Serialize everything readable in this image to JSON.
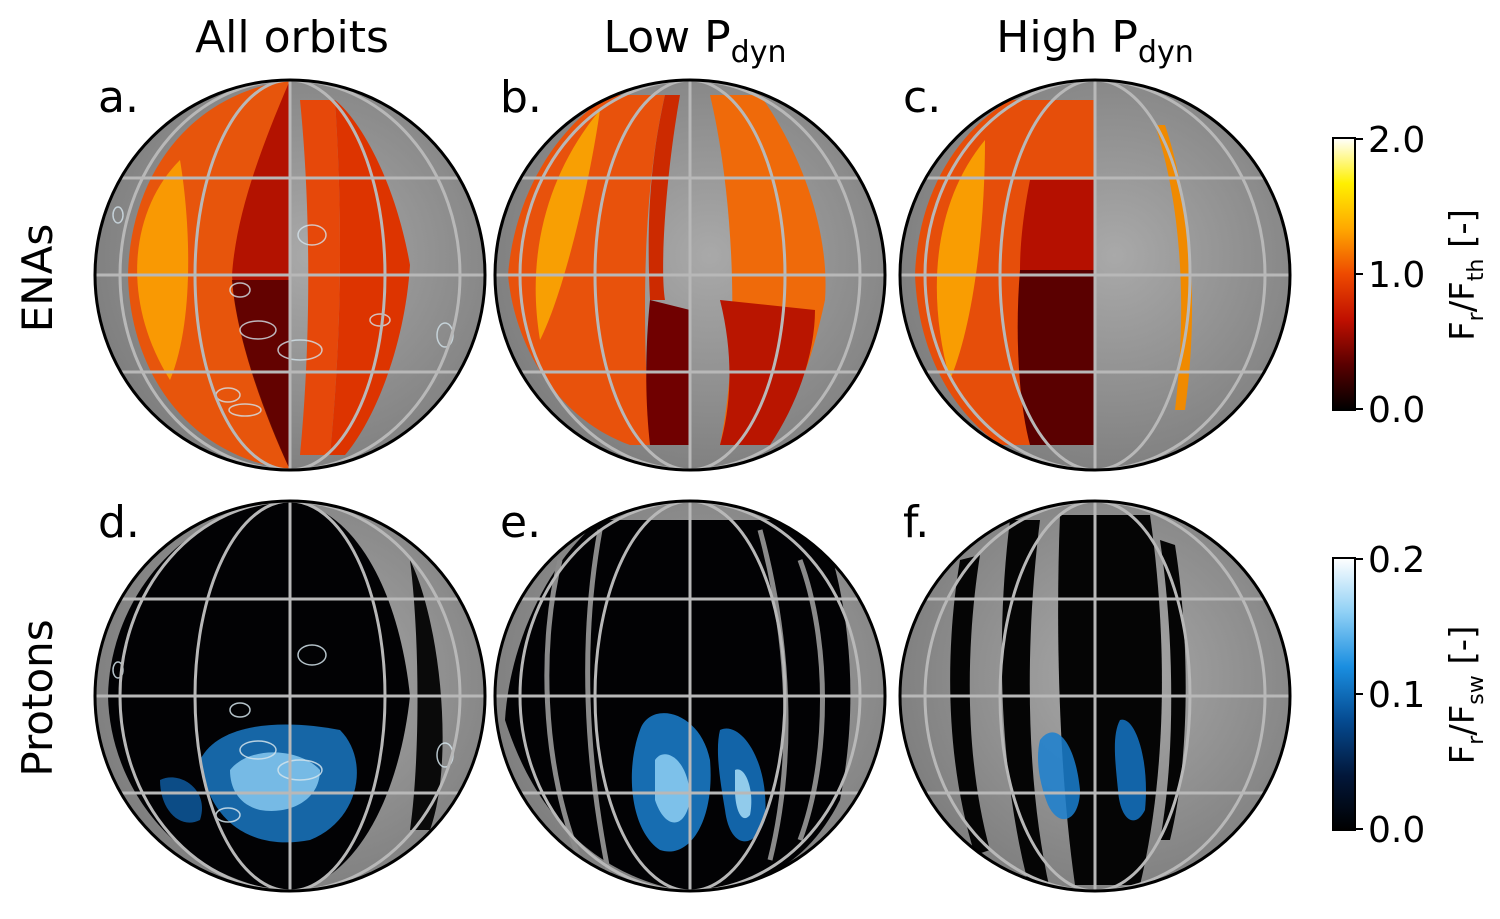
{
  "columns": [
    {
      "title": "All orbits",
      "sub": ""
    },
    {
      "title": "Low P",
      "sub": "dyn"
    },
    {
      "title": "High P",
      "sub": "dyn"
    }
  ],
  "rows": [
    {
      "label": "ENAs",
      "panels": [
        "a.",
        "b.",
        "c."
      ]
    },
    {
      "label": "Protons",
      "panels": [
        "d.",
        "e.",
        "f."
      ]
    }
  ],
  "colorbars": [
    {
      "name": "enas",
      "ticks": [
        "2.0",
        "1.0",
        "0.0"
      ],
      "label": {
        "main": "F",
        "s1": "r",
        "slash": "/F",
        "s2": "th",
        "unit": " [-]"
      },
      "colors": [
        "#000000",
        "#5a0000",
        "#c01000",
        "#ee4a00",
        "#ffa800",
        "#fff000",
        "#ffffff"
      ]
    },
    {
      "name": "protons",
      "ticks": [
        "0.2",
        "0.1",
        "0.0"
      ],
      "label": {
        "main": "F",
        "s1": "r",
        "slash": "/F",
        "s2": "sw",
        "unit": " [-]"
      },
      "colors": [
        "#000000",
        "#02173a",
        "#054a90",
        "#1a8ee0",
        "#8fd0f5",
        "#ffffff"
      ]
    }
  ]
}
